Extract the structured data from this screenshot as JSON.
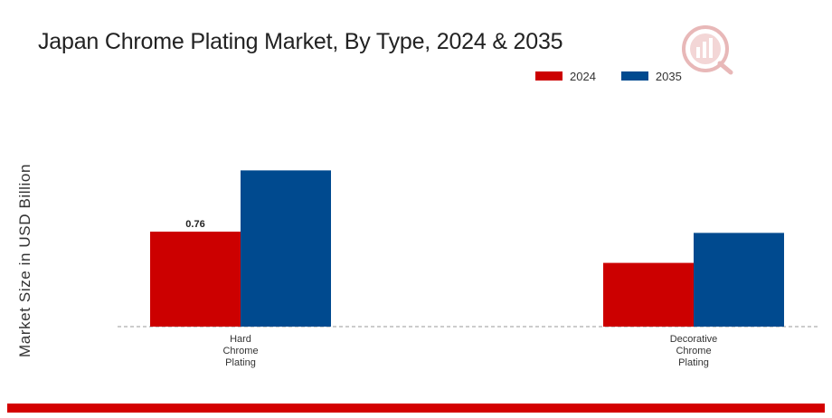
{
  "chart_data": {
    "type": "bar",
    "title": "Japan Chrome Plating Market, By Type, 2024 & 2035",
    "ylabel": "Market Size in USD Billion",
    "categories": [
      [
        "Hard",
        "Chrome",
        "Plating"
      ],
      [
        "Decorative",
        "Chrome",
        "Plating"
      ]
    ],
    "series": [
      {
        "name": "2024",
        "color": "#cc0000",
        "values": [
          0.76,
          0.51
        ]
      },
      {
        "name": "2035",
        "color": "#004a8f",
        "values": [
          1.25,
          0.75
        ]
      }
    ],
    "data_labels": [
      {
        "series": 0,
        "category": 0,
        "text": "0.76"
      }
    ],
    "ylim": [
      0,
      1.6
    ],
    "legend_position": "top-right",
    "grid": false,
    "baseline": "dashed"
  }
}
